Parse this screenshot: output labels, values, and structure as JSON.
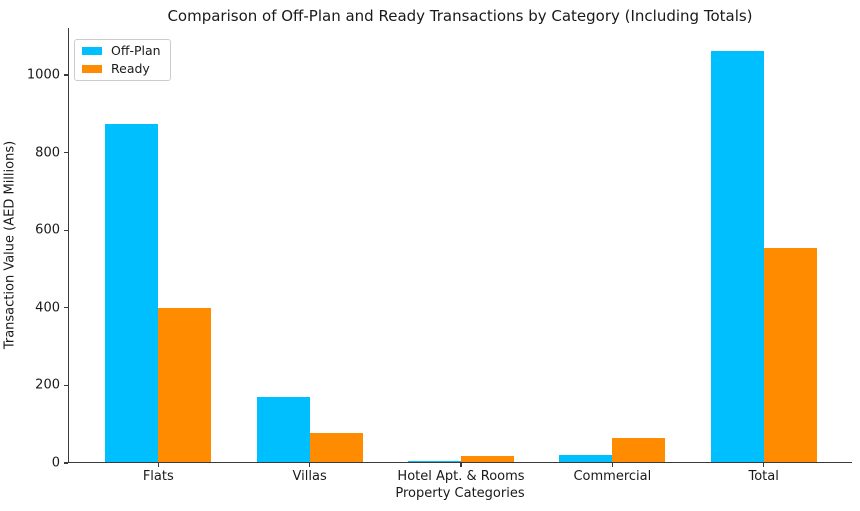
{
  "chart_title": "Comparison of Off-Plan and Ready Transactions by Category (Including Totals)",
  "chart_data": {
    "type": "bar",
    "title": "Comparison of Off-Plan and Ready Transactions by Category (Including Totals)",
    "xlabel": "Property Categories",
    "ylabel": "Transaction Value (AED Millions)",
    "categories": [
      "Flats",
      "Villas",
      "Hotel Apt. & Rooms",
      "Commercial",
      "Total"
    ],
    "series": [
      {
        "name": "Off-Plan",
        "color": "#00BFFF",
        "values": [
          870,
          168,
          3,
          19,
          1060
        ]
      },
      {
        "name": "Ready",
        "color": "#FF8C00",
        "values": [
          398,
          76,
          16,
          62,
          552
        ]
      }
    ],
    "yticks": [
      0,
      200,
      400,
      600,
      800,
      1000
    ],
    "ylim": [
      0,
      1121
    ],
    "grid": false,
    "legend_position": "upper left",
    "axis_color": "#3a3a3a",
    "text_color": "#1a1a1a",
    "background_color": "#ffffff"
  }
}
